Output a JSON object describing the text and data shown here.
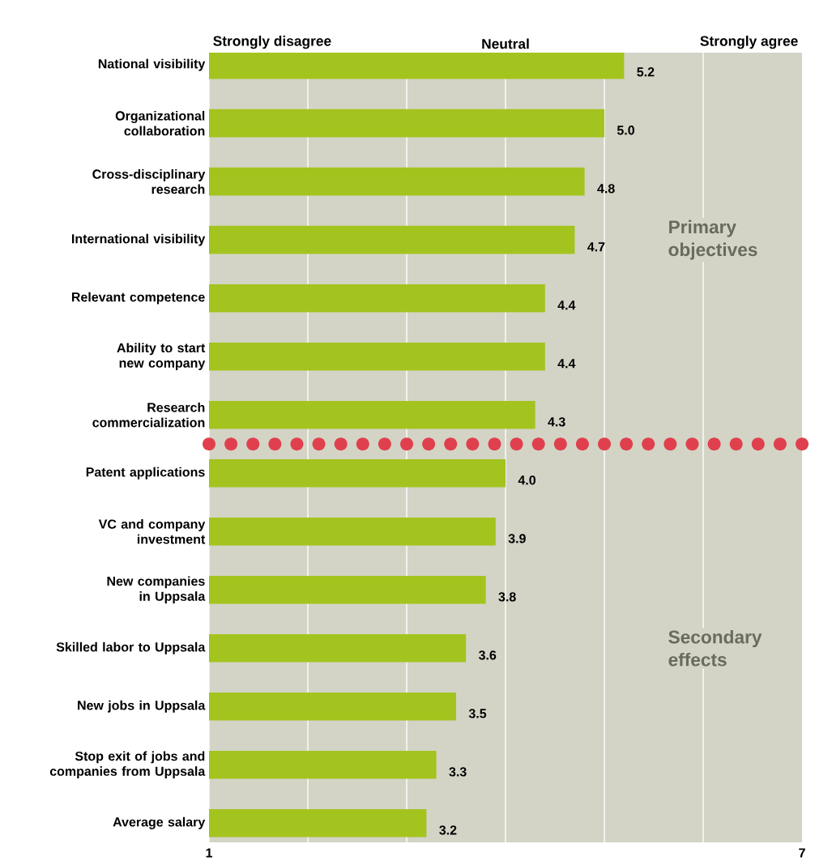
{
  "chart_data": {
    "type": "bar",
    "orientation": "horizontal",
    "categories": [
      "National visibility",
      "Organizational collaboration",
      "Cross-disciplinary research",
      "International visibility",
      "Relevant competence",
      "Ability to start new company",
      "Research commercialization",
      "Patent applications",
      "VC and company investment",
      "New companies in Uppsala",
      "Skilled labor to Uppsala",
      "New jobs in Uppsala",
      "Stop exit of jobs and companies from Uppsala",
      "Average salary"
    ],
    "values": [
      5.2,
      5.0,
      4.8,
      4.7,
      4.4,
      4.4,
      4.3,
      4.0,
      3.9,
      3.8,
      3.6,
      3.5,
      3.3,
      3.2
    ],
    "value_labels": [
      "5.2",
      "5.0",
      "4.8",
      "4.7",
      "4.4",
      "4.4",
      "4.3",
      "4.0",
      "3.9",
      "3.8",
      "3.6",
      "3.5",
      "3.3",
      "3.2"
    ],
    "color": "#a3c41e",
    "xlim": [
      1,
      7
    ],
    "xticks": [
      1,
      {
        "value": 2,
        "label": null
      },
      {
        "value": 3,
        "label": null
      },
      {
        "value": 4,
        "label": null
      },
      {
        "value": 5,
        "label": null
      },
      {
        "value": 6,
        "label": null
      },
      7
    ],
    "grid": "x",
    "annotations": [
      "Strongly disagree",
      "Neutral",
      "Strongly agree",
      "Primary objectives",
      "Secondary effects"
    ]
  }
}
